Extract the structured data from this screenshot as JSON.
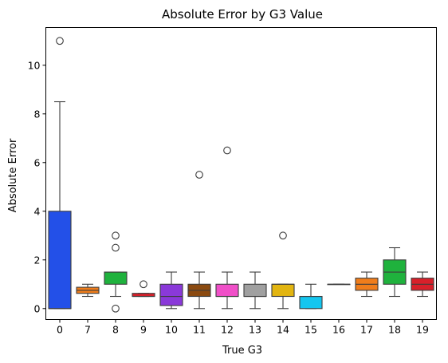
{
  "chart_data": {
    "type": "box",
    "title": "Absolute Error by G3 Value",
    "xlabel": "True G3",
    "ylabel": "Absolute Error",
    "ylim": [
      -0.45,
      11.55
    ],
    "yticks": [
      "0",
      "2",
      "4",
      "6",
      "8",
      "10"
    ],
    "grid": false,
    "categories": [
      "0",
      "7",
      "8",
      "9",
      "10",
      "11",
      "12",
      "13",
      "14",
      "15",
      "16",
      "17",
      "18",
      "19"
    ],
    "boxes": [
      {
        "category": "0",
        "whisker_low": 0,
        "q1": 0,
        "median": 0,
        "q3": 4,
        "whisker_high": 8.5,
        "outliers": [
          11
        ],
        "color": "#2350e8"
      },
      {
        "category": "7",
        "whisker_low": 0.5,
        "q1": 0.625,
        "median": 0.75,
        "q3": 0.875,
        "whisker_high": 1.0,
        "outliers": [],
        "color": "#f07d1b"
      },
      {
        "category": "8",
        "whisker_low": 0.5,
        "q1": 1.0,
        "median": 1.5,
        "q3": 1.5,
        "whisker_high": 1.5,
        "outliers": [
          3.0,
          2.5,
          0
        ],
        "color": "#1fb23d"
      },
      {
        "category": "9",
        "whisker_low": 0.5,
        "q1": 0.5,
        "median": 0.5,
        "q3": 0.625,
        "whisker_high": 0.625,
        "outliers": [
          1.0
        ],
        "color": "#d8202a"
      },
      {
        "category": "10",
        "whisker_low": 0,
        "q1": 0.125,
        "median": 0.5,
        "q3": 1.0,
        "whisker_high": 1.5,
        "outliers": [],
        "color": "#8a39d9"
      },
      {
        "category": "11",
        "whisker_low": 0,
        "q1": 0.5,
        "median": 0.75,
        "q3": 1.0,
        "whisker_high": 1.5,
        "outliers": [
          5.5
        ],
        "color": "#8b4a10"
      },
      {
        "category": "12",
        "whisker_low": 0,
        "q1": 0.5,
        "median": 0.5,
        "q3": 1.0,
        "whisker_high": 1.5,
        "outliers": [
          6.5
        ],
        "color": "#f04fc8"
      },
      {
        "category": "13",
        "whisker_low": 0,
        "q1": 0.5,
        "median": 0.5,
        "q3": 1.0,
        "whisker_high": 1.5,
        "outliers": [],
        "color": "#a0a0a0"
      },
      {
        "category": "14",
        "whisker_low": 0,
        "q1": 0.5,
        "median": 1.0,
        "q3": 1.0,
        "whisker_high": 1.0,
        "outliers": [
          3.0
        ],
        "color": "#e2b511"
      },
      {
        "category": "15",
        "whisker_low": 0,
        "q1": 0,
        "median": 0.5,
        "q3": 0.5,
        "whisker_high": 1.0,
        "outliers": [],
        "color": "#14c6ef"
      },
      {
        "category": "16",
        "whisker_low": 1.0,
        "q1": 1.0,
        "median": 1.0,
        "q3": 1.0,
        "whisker_high": 1.0,
        "outliers": [],
        "color": "#2350e8"
      },
      {
        "category": "17",
        "whisker_low": 0.5,
        "q1": 0.75,
        "median": 1.0,
        "q3": 1.25,
        "whisker_high": 1.5,
        "outliers": [],
        "color": "#f07d1b"
      },
      {
        "category": "18",
        "whisker_low": 0.5,
        "q1": 1.0,
        "median": 1.5,
        "q3": 2.0,
        "whisker_high": 2.5,
        "outliers": [],
        "color": "#1fb23d"
      },
      {
        "category": "19",
        "whisker_low": 0.5,
        "q1": 0.75,
        "median": 1.0,
        "q3": 1.25,
        "whisker_high": 1.5,
        "outliers": [],
        "color": "#d8202a"
      }
    ]
  }
}
